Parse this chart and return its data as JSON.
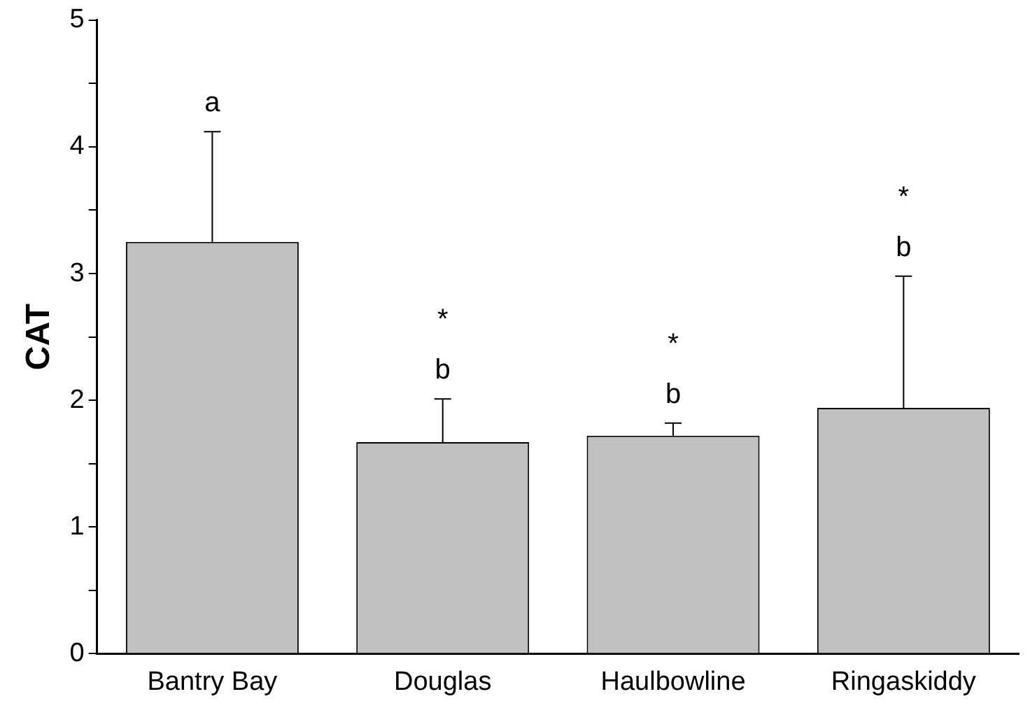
{
  "chart_data": {
    "type": "bar",
    "ylabel": "CAT",
    "categories": [
      "Bantry Bay",
      "Douglas",
      "Haulbowline",
      "Ringaskiddy"
    ],
    "values": [
      3.25,
      1.67,
      1.72,
      1.94
    ],
    "color": "#c0c0c0",
    "errors": [
      [
        3.25,
        4.12
      ],
      [
        1.67,
        2.01
      ],
      [
        1.72,
        1.82
      ],
      [
        1.94,
        2.98
      ]
    ],
    "ylim": [
      0,
      5
    ],
    "yticks": [
      0,
      {
        "value": 0.5,
        "label": null
      },
      1,
      {
        "value": 1.5,
        "label": null
      },
      2,
      {
        "value": 2.5,
        "label": null
      },
      3,
      {
        "value": 3.5,
        "label": null
      },
      4,
      {
        "value": 4.5,
        "label": null
      },
      5
    ],
    "grid": false,
    "legend": false,
    "annotations": [
      "a",
      "b",
      "*",
      "b",
      "*",
      "b",
      "*"
    ]
  }
}
